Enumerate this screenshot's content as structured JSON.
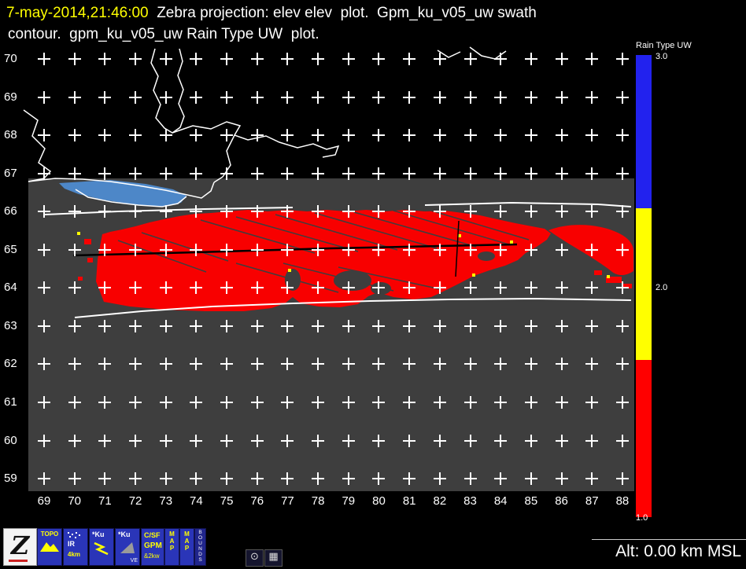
{
  "header": {
    "timestamp": "7-may-2014,21:46:00",
    "title_line1": "Zebra projection: elev elev  plot.  Gpm_ku_v05_uw swath",
    "title_line2": "contour.  gpm_ku_v05_uw Rain Type UW  plot."
  },
  "plot": {
    "x_ticks": [
      "69",
      "70",
      "71",
      "72",
      "73",
      "74",
      "75",
      "76",
      "77",
      "78",
      "79",
      "80",
      "81",
      "82",
      "83",
      "84",
      "85",
      "86",
      "87",
      "88"
    ],
    "y_ticks": [
      "70",
      "69",
      "68",
      "67",
      "66",
      "65",
      "64",
      "63",
      "62",
      "61",
      "60",
      "59"
    ]
  },
  "colorbar": {
    "title": "Rain Type UW",
    "tick_labels": {
      "top": "3.0",
      "middle": "2.0",
      "bottom": "1.0"
    },
    "segments": [
      {
        "name": "blue",
        "color": "#2222ee",
        "from": 0,
        "to": 0.332
      },
      {
        "name": "yellow",
        "color": "#ffff00",
        "from": 0.332,
        "to": 0.66
      },
      {
        "name": "red",
        "color": "#ff0000",
        "from": 0.66,
        "to": 1
      }
    ]
  },
  "chart_data": {
    "type": "heatmap",
    "title": "Rain Type UW",
    "x_axis": {
      "min": 69,
      "max": 88,
      "tick_step": 1
    },
    "y_axis": {
      "min": 59,
      "max": 70,
      "tick_step": 1
    },
    "colorbar": {
      "title": "Rain Type UW",
      "values": [
        3.0,
        2.0,
        1.0
      ],
      "colors": [
        "#2222ee",
        "#ffff00",
        "#ff0000"
      ]
    },
    "categories": [
      {
        "value": 1.0,
        "color": "#f80000",
        "extent": "dominant rain-type region filling swath roughly lat 63.6-66.1, lon 70-88"
      },
      {
        "value": 2.0,
        "color": "#ffff00",
        "extent": "isolated single pixels inside and near red region"
      },
      {
        "value": 3.0,
        "color": "#2222ee",
        "extent": "not present in swath"
      }
    ],
    "overlays": [
      "dark gray swath background lat 59-66.5",
      "white swath edge contours",
      "white coastline contours top of map",
      "blue water body near 66.3N 70.5-74E",
      "black cross-section track line near 65N"
    ]
  },
  "toolbar": {
    "zebra_label": "Z",
    "topo_label": "TOPO",
    "ir_label_1": "IR",
    "ir_label_2": "4km",
    "ku1_label": "*Ku",
    "ku2_label": "*Ku",
    "ku2_sub": "VE",
    "gpm_label_1": "C/SF",
    "gpm_label_2": "GPM",
    "gpm_label_3": "&2kw",
    "map1_label": "MAP",
    "map2_label": "MAP",
    "bounds_label": "BOUNDS",
    "clock_glyph": "⊙",
    "grid_glyph": "▦"
  },
  "status": {
    "altitude": "Alt: 0.00 km MSL"
  }
}
